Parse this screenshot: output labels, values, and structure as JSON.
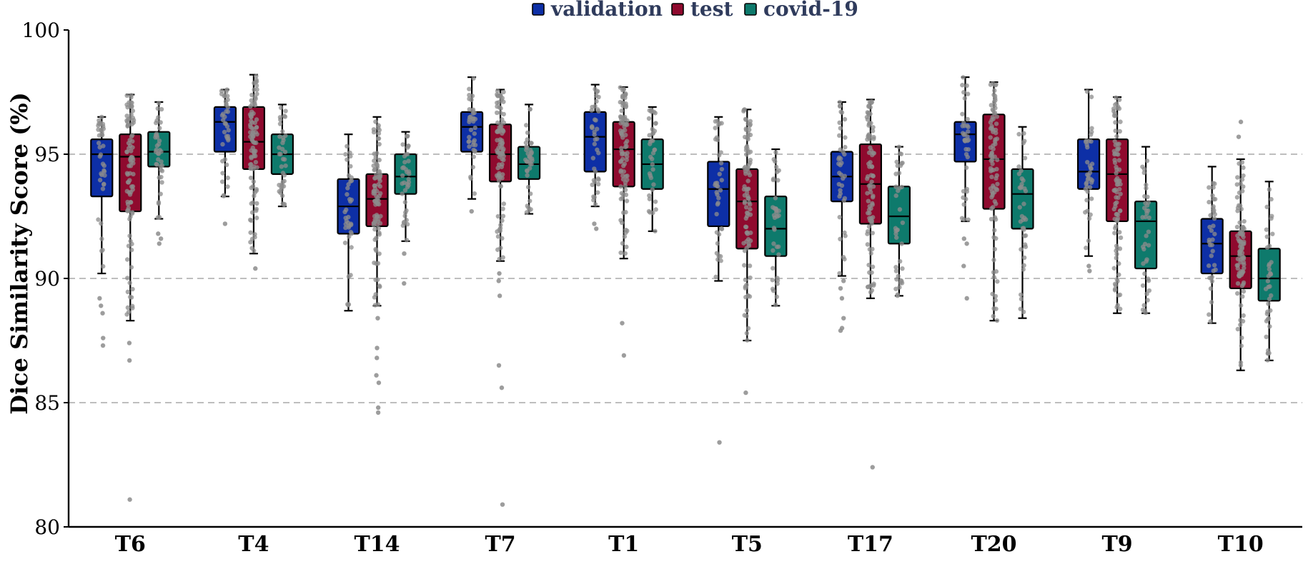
{
  "chart_data": {
    "type": "box",
    "title": "",
    "xlabel": "",
    "ylabel": "Dice Similarity Score (%)",
    "ylim": [
      80,
      100
    ],
    "yticks": [
      "80",
      "85",
      "90",
      "95",
      "100"
    ],
    "grid": "dashed horizontal at 85, 90, 95",
    "legend_position": "top-center",
    "categories": [
      "T6",
      "T4",
      "T14",
      "T7",
      "T1",
      "T5",
      "T17",
      "T20",
      "T9",
      "T10"
    ],
    "series": [
      {
        "name": "validation",
        "color": "#0d2fa6",
        "boxes": [
          {
            "whisker_low": 90.2,
            "q1": 93.3,
            "median": 95.0,
            "q3": 95.6,
            "whisker_high": 96.5,
            "outliers": [
              89.2,
              88.9,
              88.6,
              87.6,
              87.3
            ]
          },
          {
            "whisker_low": 93.3,
            "q1": 95.1,
            "median": 96.3,
            "q3": 96.9,
            "whisker_high": 97.6,
            "outliers": [
              92.2
            ]
          },
          {
            "whisker_low": 88.7,
            "q1": 91.8,
            "median": 92.9,
            "q3": 94.0,
            "whisker_high": 95.8,
            "outliers": []
          },
          {
            "whisker_low": 93.2,
            "q1": 95.1,
            "median": 96.1,
            "q3": 96.7,
            "whisker_high": 98.1,
            "outliers": [
              92.7
            ]
          },
          {
            "whisker_low": 92.9,
            "q1": 94.3,
            "median": 95.7,
            "q3": 96.7,
            "whisker_high": 97.8,
            "outliers": [
              92.2,
              92.0
            ]
          },
          {
            "whisker_low": 89.9,
            "q1": 92.1,
            "median": 93.6,
            "q3": 94.7,
            "whisker_high": 96.5,
            "outliers": [
              83.4
            ]
          },
          {
            "whisker_low": 90.1,
            "q1": 93.1,
            "median": 94.1,
            "q3": 95.1,
            "whisker_high": 97.1,
            "outliers": [
              89.9,
              89.6,
              89.2,
              88.4,
              88.0,
              87.9
            ]
          },
          {
            "whisker_low": 92.3,
            "q1": 94.7,
            "median": 95.8,
            "q3": 96.3,
            "whisker_high": 98.1,
            "outliers": [
              91.6,
              91.4,
              90.5,
              89.2
            ]
          },
          {
            "whisker_low": 90.9,
            "q1": 93.6,
            "median": 94.3,
            "q3": 95.6,
            "whisker_high": 97.6,
            "outliers": [
              90.5,
              90.3
            ]
          },
          {
            "whisker_low": 88.2,
            "q1": 90.2,
            "median": 91.4,
            "q3": 92.4,
            "whisker_high": 94.5,
            "outliers": []
          }
        ]
      },
      {
        "name": "test",
        "color": "#8f0a2e",
        "boxes": [
          {
            "whisker_low": 88.3,
            "q1": 92.7,
            "median": 94.9,
            "q3": 95.8,
            "whisker_high": 97.4,
            "outliers": [
              87.4,
              86.7,
              81.1
            ]
          },
          {
            "whisker_low": 91.0,
            "q1": 94.4,
            "median": 95.5,
            "q3": 96.9,
            "whisker_high": 98.2,
            "outliers": [
              90.4
            ]
          },
          {
            "whisker_low": 88.9,
            "q1": 92.1,
            "median": 93.2,
            "q3": 94.2,
            "whisker_high": 96.5,
            "outliers": [
              88.4,
              87.2,
              86.8,
              86.1,
              85.8,
              84.8,
              84.6
            ]
          },
          {
            "whisker_low": 90.7,
            "q1": 93.9,
            "median": 95.0,
            "q3": 96.2,
            "whisker_high": 97.6,
            "outliers": [
              90.2,
              89.9,
              89.3,
              86.5,
              85.6,
              80.9
            ]
          },
          {
            "whisker_low": 90.8,
            "q1": 93.7,
            "median": 95.2,
            "q3": 96.3,
            "whisker_high": 97.7,
            "outliers": [
              88.2,
              86.9
            ]
          },
          {
            "whisker_low": 87.5,
            "q1": 91.2,
            "median": 93.1,
            "q3": 94.4,
            "whisker_high": 96.8,
            "outliers": [
              85.4
            ]
          },
          {
            "whisker_low": 89.2,
            "q1": 92.2,
            "median": 93.8,
            "q3": 95.4,
            "whisker_high": 97.2,
            "outliers": [
              82.4
            ]
          },
          {
            "whisker_low": 88.3,
            "q1": 92.8,
            "median": 94.8,
            "q3": 96.6,
            "whisker_high": 97.9,
            "outliers": []
          },
          {
            "whisker_low": 88.6,
            "q1": 92.3,
            "median": 94.2,
            "q3": 95.6,
            "whisker_high": 97.3,
            "outliers": []
          },
          {
            "whisker_low": 86.3,
            "q1": 89.6,
            "median": 90.9,
            "q3": 91.9,
            "whisker_high": 94.8,
            "outliers": [
              96.3,
              95.7
            ]
          }
        ]
      },
      {
        "name": "covid-19",
        "color": "#0e7a6c",
        "boxes": [
          {
            "whisker_low": 92.4,
            "q1": 94.5,
            "median": 95.1,
            "q3": 95.9,
            "whisker_high": 97.1,
            "outliers": [
              91.8,
              91.6,
              91.4
            ]
          },
          {
            "whisker_low": 92.9,
            "q1": 94.2,
            "median": 95.0,
            "q3": 95.8,
            "whisker_high": 97.0,
            "outliers": []
          },
          {
            "whisker_low": 91.5,
            "q1": 93.4,
            "median": 94.1,
            "q3": 95.0,
            "whisker_high": 95.9,
            "outliers": [
              91.0,
              89.8
            ]
          },
          {
            "whisker_low": 92.6,
            "q1": 94.0,
            "median": 94.6,
            "q3": 95.3,
            "whisker_high": 97.0,
            "outliers": []
          },
          {
            "whisker_low": 91.9,
            "q1": 93.6,
            "median": 94.6,
            "q3": 95.6,
            "whisker_high": 96.9,
            "outliers": []
          },
          {
            "whisker_low": 88.9,
            "q1": 90.9,
            "median": 92.0,
            "q3": 93.3,
            "whisker_high": 95.2,
            "outliers": []
          },
          {
            "whisker_low": 89.3,
            "q1": 91.4,
            "median": 92.5,
            "q3": 93.7,
            "whisker_high": 95.3,
            "outliers": []
          },
          {
            "whisker_low": 88.4,
            "q1": 92.0,
            "median": 93.4,
            "q3": 94.4,
            "whisker_high": 96.1,
            "outliers": []
          },
          {
            "whisker_low": 88.6,
            "q1": 90.4,
            "median": 92.3,
            "q3": 93.1,
            "whisker_high": 95.3,
            "outliers": []
          },
          {
            "whisker_low": 86.7,
            "q1": 89.1,
            "median": 90.0,
            "q3": 91.2,
            "whisker_high": 93.9,
            "outliers": []
          }
        ]
      }
    ]
  }
}
